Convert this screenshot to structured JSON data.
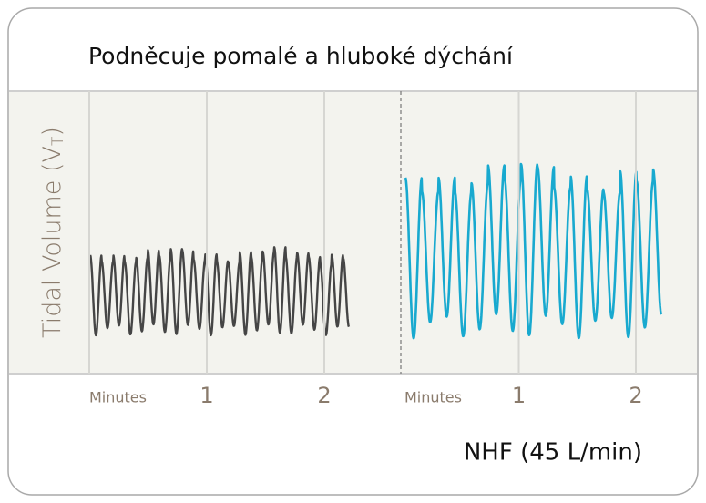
{
  "title": "Podněcuje pomalé a hluboké dýchání",
  "y_label": {
    "text": "Tidal Volume (V",
    "subscript": "T",
    "close": ")"
  },
  "panels": [
    {
      "x_ticks": [
        {
          "value": 0,
          "label": "Minutes"
        },
        1,
        2
      ]
    },
    {
      "x_ticks": [
        {
          "value": 0,
          "label": "Minutes"
        },
        1,
        2
      ],
      "caption": "NHF (45 L/min)"
    }
  ]
}
